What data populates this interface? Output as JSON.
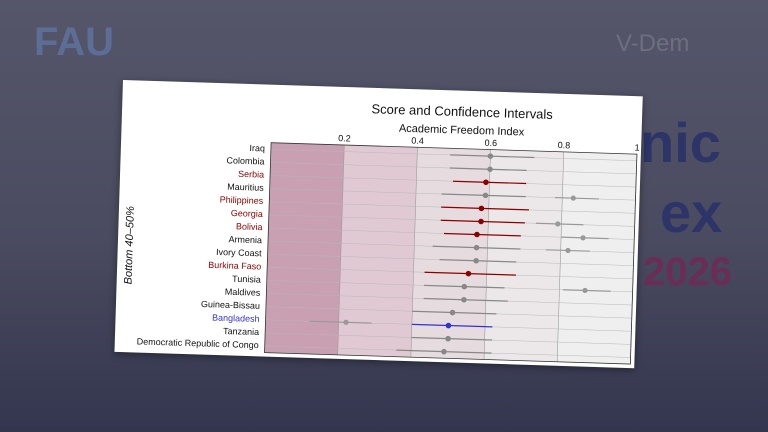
{
  "slide": {
    "logo_left": "FAU",
    "logo_right": "V-Dem",
    "title_fragments": [
      "nic",
      "ex",
      "2026"
    ]
  },
  "chart_data": {
    "type": "dotci",
    "title": "Score and Confidence Intervals",
    "x_label": "Academic Freedom Index",
    "y_label": "Bottom 40–50%",
    "xlim": [
      0,
      1
    ],
    "xticks": [
      0.2,
      0.4,
      0.6,
      0.8,
      1
    ],
    "categories": [
      "Iraq",
      "Colombia",
      "Serbia",
      "Mauritius",
      "Philippines",
      "Georgia",
      "Bolivia",
      "Armenia",
      "Ivory Coast",
      "Burkina Faso",
      "Tunisia",
      "Maldives",
      "Guinea-Bissau",
      "Bangladesh",
      "Tanzania",
      "Democratic Republic of Congo"
    ],
    "colors": [
      "#888888",
      "#888888",
      "#8b0000",
      "#888888",
      "#8b0000",
      "#8b0000",
      "#8b0000",
      "#888888",
      "#888888",
      "#8b0000",
      "#888888",
      "#888888",
      "#888888",
      "#3333cc",
      "#888888",
      "#888888"
    ],
    "label_colors": [
      "#111111",
      "#111111",
      "#8b0000",
      "#111111",
      "#8b0000",
      "#8b0000",
      "#8b0000",
      "#111111",
      "#111111",
      "#8b0000",
      "#111111",
      "#111111",
      "#111111",
      "#3333cc",
      "#111111",
      "#111111"
    ],
    "values": [
      0.6,
      0.6,
      0.59,
      0.59,
      0.58,
      0.58,
      0.57,
      0.57,
      0.57,
      0.55,
      0.54,
      0.54,
      0.51,
      0.5,
      0.5,
      0.49
    ],
    "ci_low": [
      0.49,
      0.49,
      0.5,
      0.47,
      0.47,
      0.47,
      0.48,
      0.45,
      0.47,
      0.43,
      0.43,
      0.43,
      0.4,
      0.4,
      0.4,
      0.36
    ],
    "ci_high": [
      0.72,
      0.7,
      0.7,
      0.7,
      0.71,
      0.7,
      0.69,
      0.69,
      0.68,
      0.68,
      0.65,
      0.66,
      0.63,
      0.62,
      0.62,
      0.62
    ],
    "comparison_color": "#999999",
    "comparison": [
      null,
      null,
      null,
      0.83,
      null,
      0.79,
      0.86,
      0.82,
      null,
      null,
      0.87,
      null,
      null,
      0.22,
      null,
      null
    ],
    "comparison_low": [
      null,
      null,
      null,
      0.78,
      null,
      0.73,
      0.8,
      0.76,
      null,
      null,
      0.81,
      null,
      null,
      0.12,
      null,
      null
    ],
    "comparison_high": [
      null,
      null,
      null,
      0.9,
      null,
      0.86,
      0.93,
      0.88,
      null,
      null,
      0.94,
      null,
      null,
      0.29,
      null,
      null
    ]
  }
}
